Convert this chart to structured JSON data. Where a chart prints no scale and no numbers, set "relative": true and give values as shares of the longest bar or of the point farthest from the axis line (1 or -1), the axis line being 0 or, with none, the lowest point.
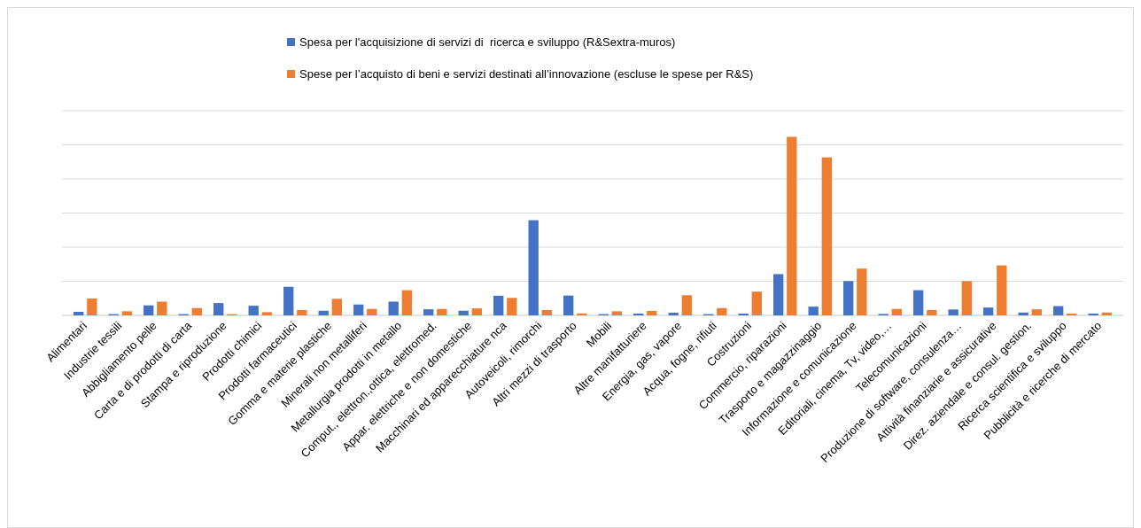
{
  "chart_data": {
    "type": "bar",
    "relative": true,
    "grid": true,
    "legend": "top",
    "categories": [
      "Alimentari",
      "Industrie tessili",
      "Abbigliamento pelle",
      "Carta e di prodotti di carta",
      "Stampa e riproduzione",
      "Prodotti chimici",
      "Prodotti farmaceutici",
      "Gomma e materie plastiche",
      "Minerali non metalliferi",
      "Metallurgia prodotti in metallo",
      "Comput., elettron.,ottica, elettromed.",
      "Appar. elettriche e non domestiche",
      "Macchinari ed apparecchiature nca",
      "Autoveicoli, rimorchi",
      "Altri mezzi di trasporto",
      "Mobili",
      "Altre manifatturiere",
      "Energia, gas, vapore",
      "Acqua, fogne, rifiuti",
      "Costruzioni",
      "Commercio, riparazioni",
      "Trasporto e magazzinaggio",
      "Informazione e comunicazione",
      "Editoriali, cinema, Tv, video,…",
      "Telecomunicazioni",
      "Produzione di software, consulenza…",
      "Attività finanziarie e assicurative",
      "Direz. aziendale e consul. gestion.",
      "Ricerca scientifica e sviluppo",
      "Pubblicità e ricerche di mercato"
    ],
    "series": [
      {
        "name": "Spesa per l'acquisizione di servizi di  ricerca e sviluppo (R&Sextra-muros)",
        "color": "#4472c4",
        "values": [
          0.02,
          0.007,
          0.056,
          0.007,
          0.069,
          0.054,
          0.16,
          0.026,
          0.061,
          0.077,
          0.034,
          0.026,
          0.11,
          0.533,
          0.111,
          0.007,
          0.01,
          0.015,
          0.007,
          0.01,
          0.231,
          0.049,
          0.192,
          0.008,
          0.141,
          0.033,
          0.044,
          0.016,
          0.052,
          0.01
        ]
      },
      {
        "name": "Spese per l’acquisto di beni e servizi destinati all’innovazione (escluse le spese per R&S)",
        "color": "#ed7d31",
        "values": [
          0.095,
          0.023,
          0.077,
          0.041,
          0.007,
          0.018,
          0.03,
          0.093,
          0.036,
          0.141,
          0.036,
          0.039,
          0.098,
          0.03,
          0.011,
          0.023,
          0.025,
          0.113,
          0.041,
          0.133,
          1,
          0.885,
          0.262,
          0.036,
          0.03,
          0.192,
          0.28,
          0.034,
          0.01,
          0.016
        ]
      }
    ]
  }
}
